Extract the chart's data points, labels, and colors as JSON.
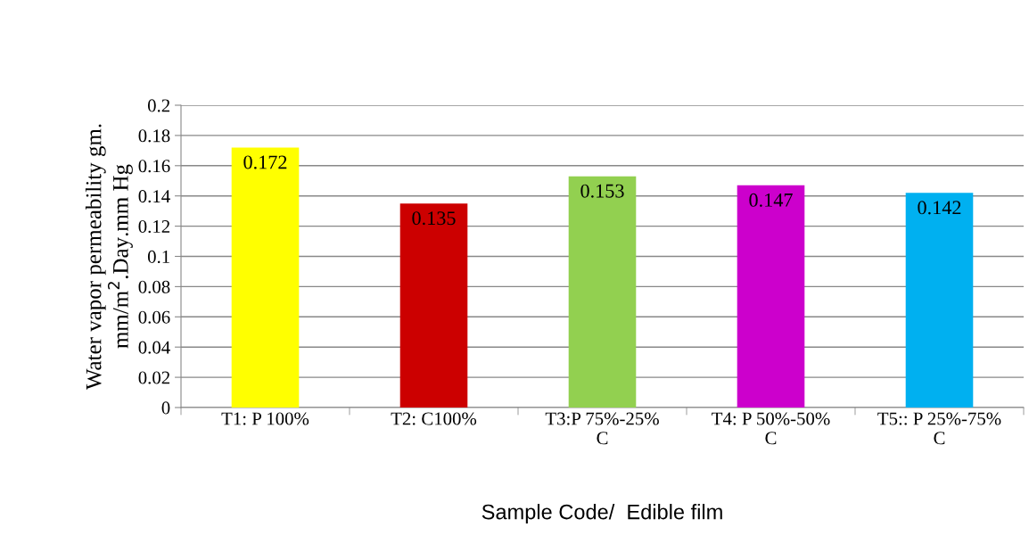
{
  "chart_data": {
    "type": "bar",
    "xlabel": "Sample Code/  Edible film",
    "ylabel": "Water vapor permeability gm.\nmm/m$^{2}$.Day.mm Hg",
    "categories": [
      "T1: P 100%",
      "T2: C100%",
      "T3:P 75%-25%\nC",
      "T4: P 50%-50%\nC",
      "T5:: P 25%-75%\nC"
    ],
    "values": [
      0.172,
      0.135,
      0.153,
      0.147,
      0.142
    ],
    "colors": [
      "#ffff00",
      "#cc0000",
      "#92d050",
      "#cc00cc",
      "#00b0f0"
    ],
    "ylim": [
      0,
      0.2
    ],
    "yticks": [
      {
        "value": 0,
        "label": "0"
      },
      0.02,
      0.04,
      0.06,
      0.08,
      {
        "value": 0.1,
        "label": "0.1"
      },
      0.12,
      0.14,
      0.16,
      0.18,
      {
        "value": 0.2,
        "label": "0.2"
      }
    ],
    "grid": "y",
    "data_labels": true
  }
}
